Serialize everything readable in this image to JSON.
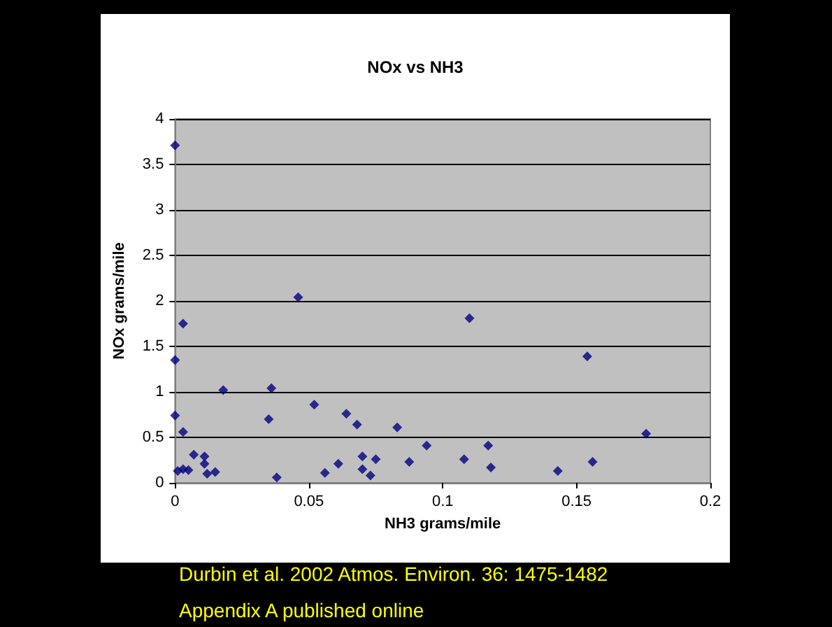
{
  "chart_data": {
    "type": "scatter",
    "title": "NOx vs NH3",
    "xlabel": "NH3 grams/mile",
    "ylabel": "NOx grams/mile",
    "x": [
      0,
      0,
      0.003,
      0,
      0.003,
      0.001,
      0.003,
      0.005,
      0.007,
      0.011,
      0.011,
      0.012,
      0.015,
      0.018,
      0.035,
      0.036,
      0.038,
      0.046,
      0.052,
      0.056,
      0.061,
      0.064,
      0.068,
      0.07,
      0.07,
      0.073,
      0.075,
      0.083,
      0.0875,
      0.094,
      0.11,
      0.108,
      0.117,
      0.118,
      0.143,
      0.154,
      0.156,
      0.176
    ],
    "values": [
      3.71,
      1.35,
      1.75,
      0.74,
      0.56,
      0.13,
      0.15,
      0.14,
      0.31,
      0.29,
      0.21,
      0.1,
      0.12,
      1.02,
      0.7,
      1.04,
      0.06,
      2.04,
      0.86,
      0.11,
      0.21,
      0.76,
      0.64,
      0.29,
      0.15,
      0.08,
      0.26,
      0.61,
      0.23,
      0.41,
      1.81,
      0.26,
      0.41,
      0.17,
      0.13,
      1.39,
      0.23,
      0.54
    ],
    "color": "#000080",
    "marker": "diamond",
    "grid": "y",
    "xlim": [
      0,
      0.2
    ],
    "xticks": [
      0,
      0.05,
      0.1,
      0.15,
      0.2
    ],
    "ylim": [
      0,
      4
    ],
    "yticks": [
      0,
      0.5,
      1,
      1.5,
      2,
      2.5,
      3,
      3.5,
      4
    ],
    "annotations": [
      "Durbin et al. 2002 Atmos. Environ. 36: 1475-1482",
      "Appendix A published online"
    ]
  }
}
